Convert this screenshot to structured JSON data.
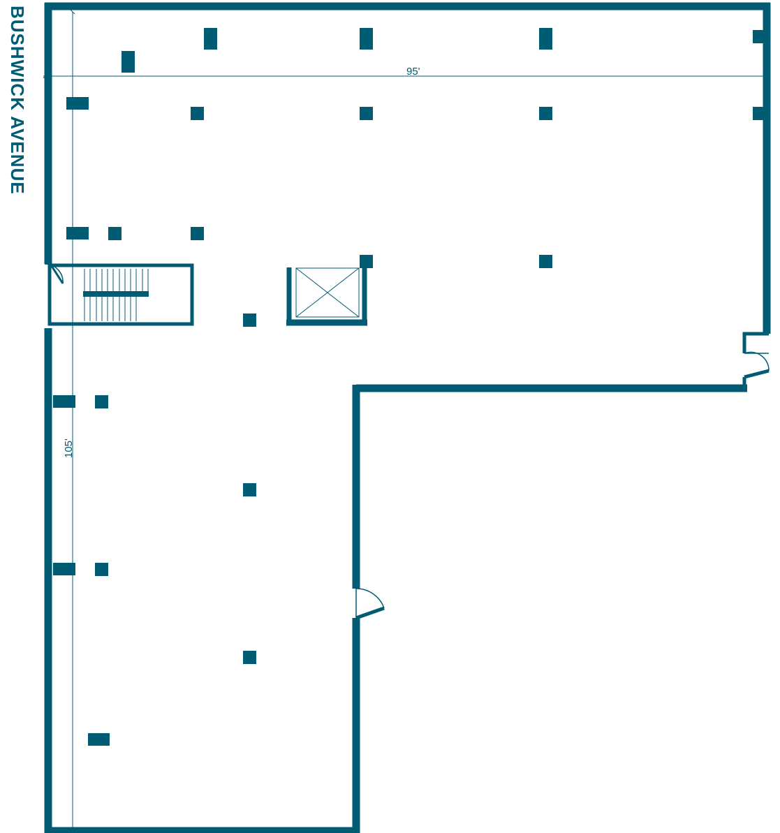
{
  "plan": {
    "street_label": "BUSHWICK AVENUE",
    "dimension_width": "95'",
    "dimension_depth": "105'",
    "colors": {
      "wall": "#005b73",
      "background": "#ffffff"
    }
  }
}
